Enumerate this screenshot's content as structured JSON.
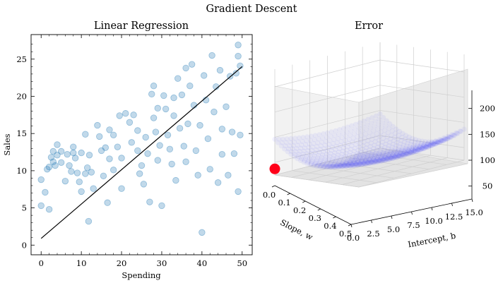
{
  "figure": {
    "title": "Gradient Descent"
  },
  "chart_data": [
    {
      "type": "scatter",
      "title": "Linear Regression",
      "xlabel": "Spending",
      "ylabel": "Sales",
      "xlim": [
        -2.5,
        52.5
      ],
      "ylim": [
        -1.3,
        28.3
      ],
      "xticks": [
        0,
        10,
        20,
        30,
        40,
        50
      ],
      "yticks": [
        0,
        5,
        10,
        15,
        20,
        25
      ],
      "marker_color": "#1f77b4",
      "line_color": "#000000",
      "points": [
        [
          0,
          8.8
        ],
        [
          0,
          5.3
        ],
        [
          1,
          7.1
        ],
        [
          2,
          4.8
        ],
        [
          1.5,
          10.2
        ],
        [
          2,
          10.5
        ],
        [
          2.5,
          11.8
        ],
        [
          3,
          12.6
        ],
        [
          3,
          11.2
        ],
        [
          3.5,
          10.7
        ],
        [
          4,
          12.1
        ],
        [
          4,
          13.5
        ],
        [
          5,
          11.1
        ],
        [
          5,
          12.6
        ],
        [
          6,
          8.6
        ],
        [
          6.5,
          12.2
        ],
        [
          7,
          10.7
        ],
        [
          7.5,
          9.9
        ],
        [
          8,
          13.2
        ],
        [
          8.5,
          11.7
        ],
        [
          9,
          9.7
        ],
        [
          9.5,
          8.5
        ],
        [
          10,
          12.4
        ],
        [
          10,
          7.2
        ],
        [
          11,
          14.9
        ],
        [
          11.5,
          10.4
        ],
        [
          11.8,
          3.2
        ],
        [
          12,
          12.1
        ],
        [
          12.5,
          9.8
        ],
        [
          13,
          7.6
        ],
        [
          14,
          16.1
        ],
        [
          14.5,
          14.6
        ],
        [
          15,
          12.7
        ],
        [
          15.5,
          9.3
        ],
        [
          16,
          13.1
        ],
        [
          16.5,
          5.7
        ],
        [
          17,
          15.5
        ],
        [
          18,
          14.8
        ],
        [
          18,
          10.1
        ],
        [
          19,
          13.2
        ],
        [
          19.5,
          17.4
        ],
        [
          20,
          11.7
        ],
        [
          20,
          7.6
        ],
        [
          21,
          17.7
        ],
        [
          22,
          16.5
        ],
        [
          22.5,
          13.8
        ],
        [
          23,
          17.5
        ],
        [
          24,
          15.4
        ],
        [
          24.5,
          9.6
        ],
        [
          25,
          10.7
        ],
        [
          25.5,
          8.2
        ],
        [
          26,
          14.5
        ],
        [
          26.5,
          12.3
        ],
        [
          27,
          5.8
        ],
        [
          27.5,
          20.3
        ],
        [
          28,
          21.4
        ],
        [
          28,
          17.1
        ],
        [
          28.5,
          15.2
        ],
        [
          29,
          18.4
        ],
        [
          29.5,
          13.4
        ],
        [
          30,
          5.3
        ],
        [
          30.5,
          20.1
        ],
        [
          31,
          18.3
        ],
        [
          31.5,
          14.8
        ],
        [
          32,
          12.9
        ],
        [
          32.5,
          10.9
        ],
        [
          33,
          19.8
        ],
        [
          33.5,
          8.7
        ],
        [
          34,
          22.4
        ],
        [
          34.5,
          15.7
        ],
        [
          35,
          20.2
        ],
        [
          35.5,
          13.3
        ],
        [
          36,
          23.8
        ],
        [
          36.5,
          16.3
        ],
        [
          37,
          21.4
        ],
        [
          38,
          18.8
        ],
        [
          38.5,
          12.7
        ],
        [
          39,
          9.4
        ],
        [
          39.5,
          16.1
        ],
        [
          40,
          1.7
        ],
        [
          40.5,
          22.8
        ],
        [
          41,
          19.5
        ],
        [
          41.5,
          14.3
        ],
        [
          42,
          10.2
        ],
        [
          42.5,
          25.5
        ],
        [
          43,
          17.9
        ],
        [
          43.5,
          21.3
        ],
        [
          44,
          8.4
        ],
        [
          44.5,
          23.5
        ],
        [
          45,
          15.6
        ],
        [
          46,
          18.6
        ],
        [
          46.5,
          9.4
        ],
        [
          47,
          22.7
        ],
        [
          47.5,
          15.2
        ],
        [
          48,
          12.3
        ],
        [
          48.5,
          23.1
        ],
        [
          49,
          26.9
        ],
        [
          49,
          25.4
        ],
        [
          49.5,
          24.1
        ],
        [
          49.5,
          14.8
        ],
        [
          49,
          7.2
        ],
        [
          24,
          12.7
        ],
        [
          8,
          12.4
        ],
        [
          17,
          11.6
        ],
        [
          37.5,
          24.3
        ],
        [
          36,
          11.2
        ],
        [
          11,
          9.6
        ],
        [
          29,
          11.4
        ],
        [
          33,
          17.4
        ],
        [
          45,
          12.2
        ]
      ],
      "fit_line": {
        "x": [
          0,
          50
        ],
        "y": [
          0.9,
          24.0
        ]
      }
    },
    {
      "type": "surface3d",
      "title": "Error",
      "xlabel": "Slope, w",
      "ylabel": "Intercept, b",
      "zlabel": "",
      "xlim": [
        0,
        0.5
      ],
      "ylim": [
        0,
        15
      ],
      "zlim": [
        25,
        235
      ],
      "xticks": [
        0.0,
        0.1,
        0.2,
        0.3,
        0.4,
        0.5
      ],
      "yticks": [
        0.0,
        2.5,
        5.0,
        7.5,
        10.0,
        12.5,
        15.0
      ],
      "zticks": [
        50,
        100,
        150,
        200
      ],
      "xtick_labels": [
        "0.0",
        "0.1",
        "0.2",
        "0.3",
        "0.4",
        "0.5"
      ],
      "ytick_labels": [
        "0.0",
        "2.5",
        "5.0",
        "7.5",
        "10.0",
        "12.5",
        "15.0"
      ],
      "ztick_labels": [
        "50",
        "100",
        "150",
        "200"
      ],
      "surface_color": "#4a4aff",
      "marker": {
        "w": 0.0,
        "b": 0.0,
        "error": 40,
        "color": "#ff0019"
      }
    }
  ]
}
